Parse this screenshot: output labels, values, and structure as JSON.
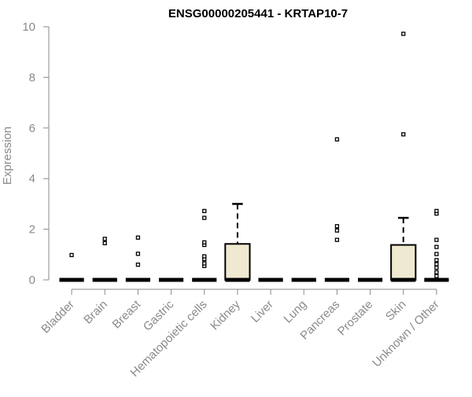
{
  "chart_data": {
    "type": "box",
    "title": "ENSG00000205441 - KRTAP10-7",
    "xlabel": "",
    "ylabel": "Expression",
    "ylim": [
      0,
      10
    ],
    "yticks": [
      0,
      2,
      4,
      6,
      8,
      10
    ],
    "grid": false,
    "legend": "none",
    "colors": {
      "box_fill": "#efe9d1",
      "axis_text": "#8a8a8a",
      "title": "#000000",
      "stroke": "#000000"
    },
    "categories": [
      "Bladder",
      "Brain",
      "Breast",
      "Gastric",
      "Hematopoietic cells",
      "Kidney",
      "Liver",
      "Lung",
      "Pancreas",
      "Prostate",
      "Skin",
      "Unknown / Other"
    ],
    "boxes": [
      {
        "category": "Bladder",
        "min": 0,
        "q1": 0,
        "median": 0,
        "q3": 0,
        "max": 0,
        "outliers": [
          0.98
        ]
      },
      {
        "category": "Brain",
        "min": 0,
        "q1": 0,
        "median": 0,
        "q3": 0,
        "max": 0,
        "outliers": [
          1.45,
          1.62
        ]
      },
      {
        "category": "Breast",
        "min": 0,
        "q1": 0,
        "median": 0,
        "q3": 0,
        "max": 0,
        "outliers": [
          0.6,
          1.03,
          1.67
        ]
      },
      {
        "category": "Gastric",
        "min": 0,
        "q1": 0,
        "median": 0,
        "q3": 0,
        "max": 0,
        "outliers": []
      },
      {
        "category": "Hematopoietic cells",
        "min": 0,
        "q1": 0,
        "median": 0,
        "q3": 0,
        "max": 0,
        "outliers": [
          0.55,
          0.65,
          0.82,
          0.93,
          1.38,
          1.48,
          2.45,
          2.72
        ]
      },
      {
        "category": "Kidney",
        "min": 0,
        "q1": 0,
        "median": 0,
        "q3": 1.42,
        "max": 3.0,
        "outliers": []
      },
      {
        "category": "Liver",
        "min": 0,
        "q1": 0,
        "median": 0,
        "q3": 0,
        "max": 0,
        "outliers": []
      },
      {
        "category": "Lung",
        "min": 0,
        "q1": 0,
        "median": 0,
        "q3": 0,
        "max": 0,
        "outliers": []
      },
      {
        "category": "Pancreas",
        "min": 0,
        "q1": 0,
        "median": 0,
        "q3": 0,
        "max": 0,
        "outliers": [
          1.58,
          1.95,
          2.12,
          5.55
        ]
      },
      {
        "category": "Prostate",
        "min": 0,
        "q1": 0,
        "median": 0,
        "q3": 0,
        "max": 0,
        "outliers": []
      },
      {
        "category": "Skin",
        "min": 0,
        "q1": 0,
        "median": 0,
        "q3": 1.38,
        "max": 2.45,
        "outliers": [
          5.75,
          9.72
        ]
      },
      {
        "category": "Unknown / Other",
        "min": 0,
        "q1": 0,
        "median": 0,
        "q3": 0,
        "max": 0,
        "outliers": [
          0.15,
          0.3,
          0.48,
          0.62,
          0.78,
          1.02,
          1.3,
          1.58,
          2.62,
          2.72
        ]
      }
    ]
  }
}
